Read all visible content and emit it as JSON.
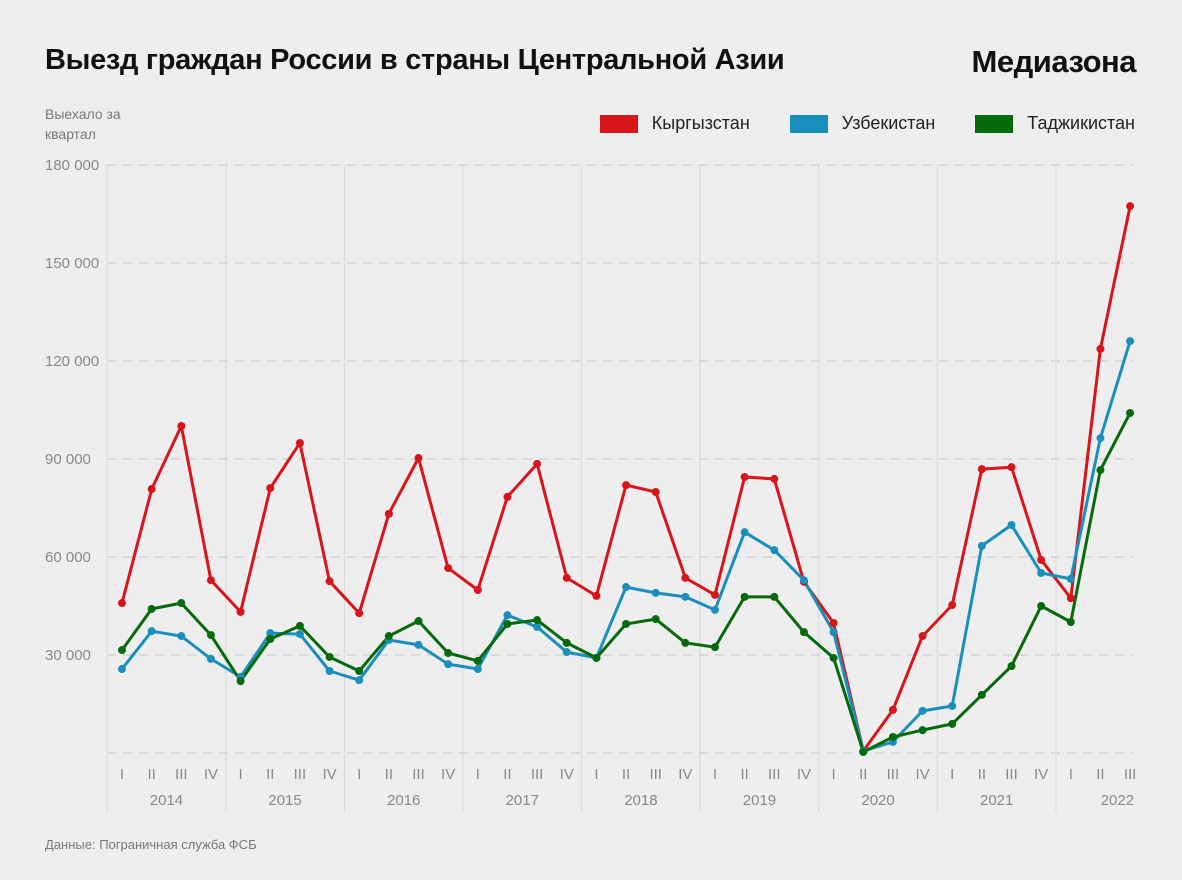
{
  "header": {
    "title": "Выезд граждан России в страны Центральной Азии",
    "brand": "Медиазона"
  },
  "footer": {
    "source": "Данные: Пограничная служба ФСБ"
  },
  "chart_data": {
    "type": "line",
    "title": "Выезд граждан России в страны Центральной Азии",
    "ylabel": "Выехало за квартал",
    "xlabel": "",
    "ylim": [
      0,
      180000
    ],
    "yticks": [
      30000,
      60000,
      90000,
      120000,
      150000,
      180000
    ],
    "ytick_labels": [
      "30 000",
      "60 000",
      "90 000",
      "120 000",
      "150 000",
      "180 000"
    ],
    "grid": true,
    "legend_position": "top-right",
    "years": [
      "2014",
      "2015",
      "2016",
      "2017",
      "2018",
      "2019",
      "2020",
      "2021",
      "2022"
    ],
    "quarters": [
      "I",
      "II",
      "III",
      "IV",
      "I",
      "II",
      "III",
      "IV",
      "I",
      "II",
      "III",
      "IV",
      "I",
      "II",
      "III",
      "IV",
      "I",
      "II",
      "III",
      "IV",
      "I",
      "II",
      "III",
      "IV",
      "I",
      "II",
      "III",
      "IV",
      "I",
      "II",
      "III",
      "IV",
      "I",
      "II",
      "III"
    ],
    "series": [
      {
        "name": "Кыргызстан",
        "color": "#d8151a",
        "values": [
          45900,
          80800,
          100100,
          52900,
          43200,
          81100,
          94900,
          52600,
          42800,
          73200,
          90300,
          56600,
          49900,
          78400,
          88500,
          53600,
          48100,
          82000,
          79900,
          53600,
          48400,
          84500,
          83900,
          52400,
          39800,
          600,
          13200,
          35800,
          45300,
          86900,
          87500,
          59100,
          47400,
          123700,
          167400
        ]
      },
      {
        "name": "Узбекистан",
        "color": "#1a8fbb",
        "values": [
          25700,
          37300,
          35800,
          28800,
          23300,
          36700,
          36400,
          25100,
          22300,
          34600,
          33100,
          27200,
          25700,
          42200,
          38600,
          30900,
          29100,
          50800,
          49000,
          47800,
          43800,
          67600,
          62100,
          52900,
          37000,
          600,
          3400,
          12900,
          14400,
          63400,
          69800,
          55100,
          53300,
          96400,
          126100
        ]
      },
      {
        "name": "Таджикистан",
        "color": "#076a0a",
        "values": [
          31500,
          44100,
          45900,
          36100,
          22000,
          34900,
          38900,
          29400,
          25100,
          35800,
          40400,
          30600,
          28200,
          39500,
          40700,
          33700,
          29100,
          39500,
          41000,
          33700,
          32400,
          47800,
          47800,
          37000,
          29100,
          300,
          4900,
          7000,
          8900,
          17800,
          26600,
          45000,
          40100,
          86600,
          104100
        ]
      }
    ]
  }
}
